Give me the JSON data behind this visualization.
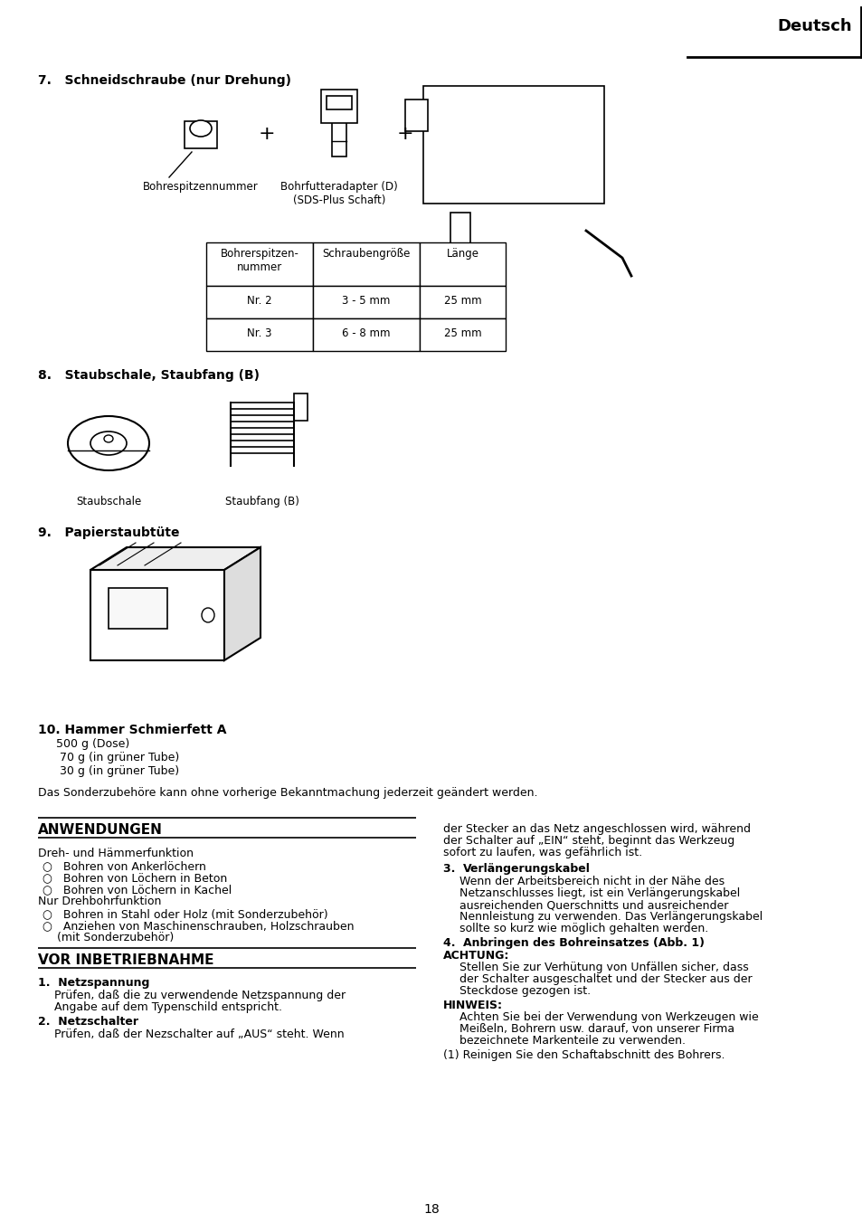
{
  "bg_color": "#ffffff",
  "page_number": "18",
  "header_text": "Deutsch",
  "section7_title": "7.   Schneidschraube (nur Drehung)",
  "label_bohrespitzennummer": "Bohrespitzennummer",
  "label_bohrfutteradapter": "Bohrfutteradapter (D)\n(SDS-Plus Schaft)",
  "table_headers": [
    "Bohrerspitzen-\nnummer",
    "Schraubengröße",
    "Länge"
  ],
  "table_rows": [
    [
      "Nr. 2",
      "3 - 5 mm",
      "25 mm"
    ],
    [
      "Nr. 3",
      "6 - 8 mm",
      "25 mm"
    ]
  ],
  "section8_title": "8.   Staubschale, Staubfang (B)",
  "label_staubschale": "Staubschale",
  "label_staubfang": "Staubfang (B)",
  "section9_title": "9.   Papierstaubtüte",
  "section10_title": "10. Hammer Schmierfett A",
  "section10_lines": [
    "500 g (Dose)",
    " 70 g (in grüner Tube)",
    " 30 g (in grüner Tube)"
  ],
  "sonder_text": "Das Sonderzubehöre kann ohne vorherige Bekanntmachung jederzeit geändert werden.",
  "anwendungen_title": "ANWENDUNGEN",
  "anwendungen_lines": [
    "Dreh- und Hämmerfunktion",
    "○   Bohren von Ankerlöchern",
    "○   Bohren von Löchern in Beton",
    "○   Bohren von Löchern in Kachel",
    "Nur Drehbohrfunktion",
    "○   Bohren in Stahl oder Holz (mit Sonderzubehör)",
    "○   Anziehen von Maschinenschrauben, Holzschrauben",
    "    (mit Sonderzubehör)"
  ],
  "vor_title": "VOR INBETRIEBNAHME",
  "right_col_top": "der Stecker an das Netz angeschlossen wird, während\nder Schalter auf „EIN“ steht, beginnt das Werkzeug\nsofort zu laufen, was gefährlich ist.",
  "right_col_3_label": "Verlängerungskabel",
  "right_col_3_lines": [
    "Wenn der Arbeitsbereich nicht in der Nähe des",
    "Netzanschlusses liegt, ist ein Verlängerungskabel",
    "ausreichenden Querschnitts und ausreichender",
    "Nennleistung zu verwenden. Das Verlängerungskabel",
    "sollte so kurz wie möglich gehalten werden."
  ],
  "right_col_4_label": "Anbringen des Bohreinsatzes (Abb. 1)",
  "right_col_achtung_lines": [
    "Stellen Sie zur Verhütung von Unfällen sicher, dass",
    "der Schalter ausgeschaltet und der Stecker aus der",
    "Steckdose gezogen ist."
  ],
  "right_col_hinweis_lines": [
    "Achten Sie bei der Verwendung von Werkzeugen wie",
    "Meißeln, Bohrern usw. darauf, von unserer Firma",
    "bezeichnete Markenteile zu verwenden."
  ],
  "right_col_1": "(1) Reinigen Sie den Schaftabschnitt des Bohrers."
}
